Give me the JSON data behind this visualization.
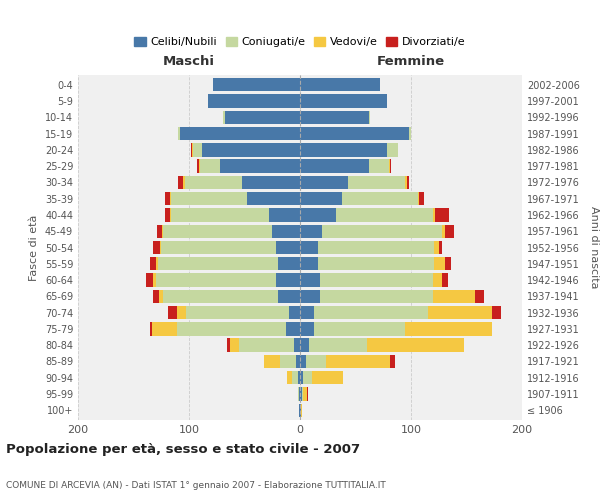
{
  "age_groups": [
    "100+",
    "95-99",
    "90-94",
    "85-89",
    "80-84",
    "75-79",
    "70-74",
    "65-69",
    "60-64",
    "55-59",
    "50-54",
    "45-49",
    "40-44",
    "35-39",
    "30-34",
    "25-29",
    "20-24",
    "15-19",
    "10-14",
    "5-9",
    "0-4"
  ],
  "birth_years": [
    "≤ 1906",
    "1907-1911",
    "1912-1916",
    "1917-1921",
    "1922-1926",
    "1927-1931",
    "1932-1936",
    "1937-1941",
    "1942-1946",
    "1947-1951",
    "1952-1956",
    "1957-1961",
    "1962-1966",
    "1967-1971",
    "1972-1976",
    "1977-1981",
    "1982-1986",
    "1987-1991",
    "1992-1996",
    "1997-2001",
    "2002-2006"
  ],
  "maschi": {
    "celibi": [
      1,
      1,
      2,
      4,
      5,
      13,
      10,
      20,
      22,
      20,
      22,
      25,
      28,
      48,
      52,
      72,
      88,
      108,
      68,
      83,
      78
    ],
    "coniugati": [
      0,
      1,
      5,
      14,
      50,
      98,
      93,
      103,
      108,
      108,
      103,
      98,
      88,
      68,
      52,
      18,
      8,
      2,
      1,
      0,
      0
    ],
    "vedovi": [
      0,
      0,
      5,
      14,
      8,
      22,
      8,
      4,
      2,
      2,
      1,
      1,
      1,
      1,
      1,
      1,
      1,
      0,
      0,
      0,
      0
    ],
    "divorziati": [
      0,
      0,
      0,
      0,
      3,
      2,
      8,
      5,
      7,
      5,
      6,
      5,
      5,
      5,
      5,
      2,
      1,
      0,
      0,
      0,
      0
    ]
  },
  "femmine": {
    "nubili": [
      1,
      2,
      3,
      5,
      8,
      13,
      13,
      18,
      18,
      16,
      16,
      20,
      32,
      38,
      43,
      62,
      78,
      98,
      62,
      78,
      72
    ],
    "coniugate": [
      0,
      1,
      8,
      18,
      52,
      82,
      102,
      102,
      102,
      105,
      105,
      108,
      88,
      68,
      52,
      18,
      10,
      2,
      1,
      0,
      0
    ],
    "vedove": [
      1,
      3,
      28,
      58,
      88,
      78,
      58,
      38,
      8,
      10,
      4,
      3,
      2,
      1,
      1,
      1,
      0,
      0,
      0,
      0,
      0
    ],
    "divorziate": [
      0,
      1,
      0,
      5,
      0,
      0,
      8,
      8,
      5,
      5,
      3,
      8,
      12,
      5,
      2,
      1,
      0,
      0,
      0,
      0,
      0
    ]
  },
  "colors": {
    "celibi_nubili": "#4878a8",
    "coniugati": "#c5d8a0",
    "vedovi": "#f5c842",
    "divorziati": "#c8201e"
  },
  "xlim": 200,
  "title": "Popolazione per età, sesso e stato civile - 2007",
  "subtitle": "COMUNE DI ARCEVIA (AN) - Dati ISTAT 1° gennaio 2007 - Elaborazione TUTTITALIA.IT",
  "xlabel_left": "Maschi",
  "xlabel_right": "Femmine",
  "ylabel_left": "Fasce di età",
  "ylabel_right": "Anni di nascita",
  "legend_labels": [
    "Celibi/Nubili",
    "Coniugati/e",
    "Vedovi/e",
    "Divorziati/e"
  ],
  "background_color": "#ffffff",
  "grid_color": "#cccccc",
  "figsize": [
    6.0,
    5.0
  ],
  "dpi": 100
}
